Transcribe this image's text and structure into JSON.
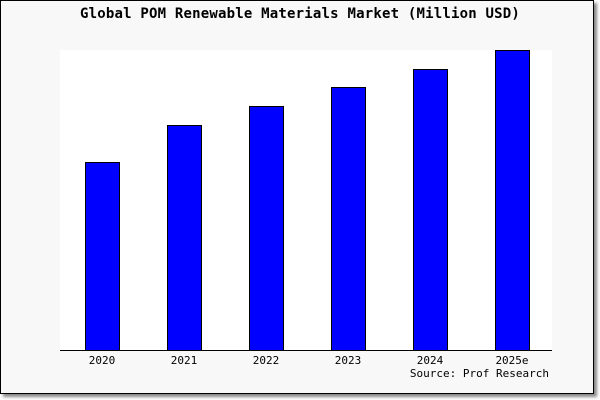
{
  "chart_data": {
    "type": "bar",
    "title": "Global POM Renewable Materials Market (Million USD)",
    "categories": [
      "2020",
      "2021",
      "2022",
      "2023",
      "2024",
      "2025e"
    ],
    "values": [
      188,
      225,
      244,
      263,
      281,
      300
    ],
    "ylim": [
      0,
      300
    ],
    "xlabel": "",
    "ylabel": "",
    "grid": false,
    "bar_color": "#0000ff",
    "source": "Source: Prof Research"
  }
}
